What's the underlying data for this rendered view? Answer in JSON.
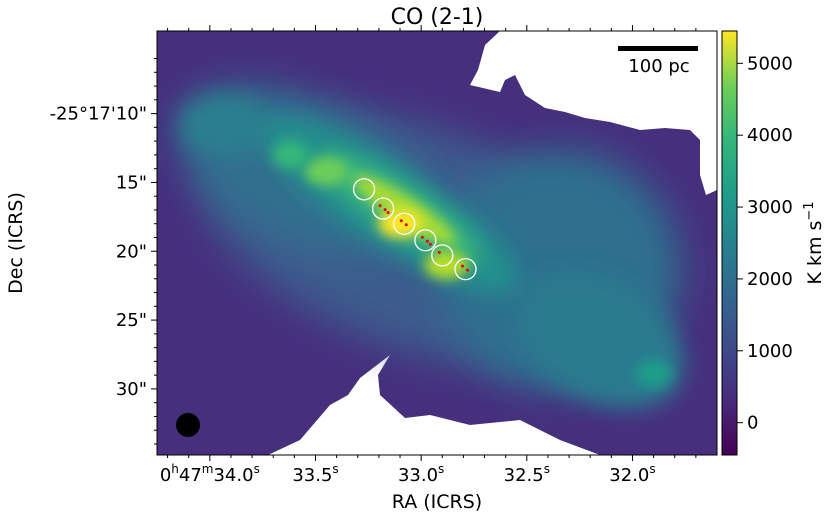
{
  "chart_data": {
    "type": "heatmap",
    "title": "CO (2-1)",
    "xlabel": "RA (ICRS)",
    "ylabel": "Dec (ICRS)",
    "x_ticks": [
      {
        "label": "0h47m34.0s",
        "parts": [
          "0",
          "h",
          "47",
          "m",
          "34.0",
          "s"
        ],
        "ra_s": 34.0
      },
      {
        "label": "33.5s",
        "parts": [
          "33.5",
          "s"
        ],
        "ra_s": 33.5
      },
      {
        "label": "33.0s",
        "parts": [
          "33.0",
          "s"
        ],
        "ra_s": 33.0
      },
      {
        "label": "32.5s",
        "parts": [
          "32.5",
          "s"
        ],
        "ra_s": 32.5
      },
      {
        "label": "32.0s",
        "parts": [
          "32.0",
          "s"
        ],
        "ra_s": 32.0
      }
    ],
    "y_ticks": [
      {
        "label": "-25°17'10\"",
        "dec_arcsec": 10
      },
      {
        "label": "15\"",
        "dec_arcsec": 15
      },
      {
        "label": "20\"",
        "dec_arcsec": 20
      },
      {
        "label": "25\"",
        "dec_arcsec": 25
      },
      {
        "label": "30\"",
        "dec_arcsec": 30
      }
    ],
    "xlim_ra_s": [
      34.25,
      31.6
    ],
    "ylim_dec_arcsec": [
      34.8,
      4.0
    ],
    "colorbar": {
      "label": "K km s",
      "label_exponent": "−1",
      "ticks": [
        "0",
        "1000",
        "2000",
        "3000",
        "4000",
        "5000"
      ],
      "tick_values": [
        0,
        1000,
        2000,
        3000,
        4000,
        5000
      ],
      "vmin": -450,
      "vmax": 5450,
      "colormap": [
        "#440154",
        "#3b528b",
        "#21918c",
        "#5ec962",
        "#fde725"
      ]
    },
    "scale_bar": {
      "label": "100 pc"
    },
    "beam": {
      "shape": "circle",
      "color": "#000000"
    },
    "regions": [
      {
        "ra_s": 33.27,
        "dec_arcsec": 15.5,
        "red_points": 0
      },
      {
        "ra_s": 33.18,
        "dec_arcsec": 16.9,
        "red_points": 3
      },
      {
        "ra_s": 33.08,
        "dec_arcsec": 18.0,
        "red_points": 2
      },
      {
        "ra_s": 32.98,
        "dec_arcsec": 19.2,
        "red_points": 3
      },
      {
        "ra_s": 32.9,
        "dec_arcsec": 20.3,
        "red_points": 1
      },
      {
        "ra_s": 32.79,
        "dec_arcsec": 21.3,
        "red_points": 2
      }
    ],
    "emission_features": [
      {
        "name": "central-bar-peak",
        "ra_s": 33.1,
        "dec_arcsec": 18.0,
        "value": 5200
      },
      {
        "name": "bar-west-knot",
        "ra_s": 33.45,
        "dec_arcsec": 14.2,
        "value": 4300
      },
      {
        "name": "nw-clump",
        "ra_s": 33.62,
        "dec_arcsec": 13.0,
        "value": 3200
      },
      {
        "name": "sw-knot",
        "ra_s": 32.88,
        "dec_arcsec": 21.0,
        "value": 4500
      },
      {
        "name": "se-clump",
        "ra_s": 31.9,
        "dec_arcsec": 28.9,
        "value": 2800
      }
    ],
    "grid": false,
    "legend": "none"
  }
}
